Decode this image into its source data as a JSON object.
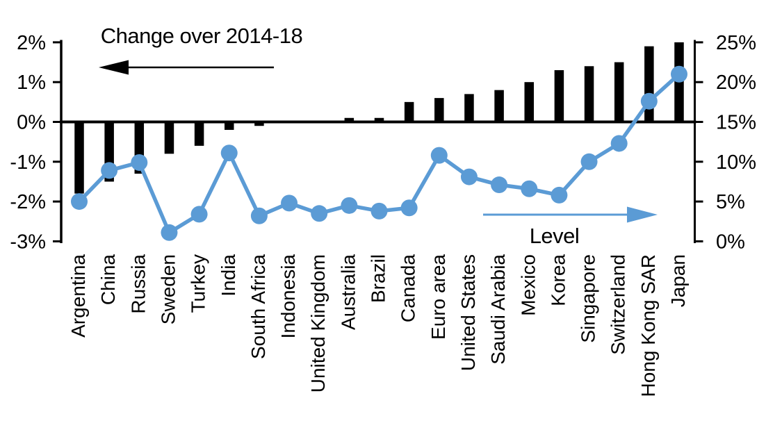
{
  "chart_data": {
    "type": "bar+line",
    "title": "",
    "categories": [
      "Argentina",
      "China",
      "Russia",
      "Sweden",
      "Turkey",
      "India",
      "South Africa",
      "Indonesia",
      "United Kingdom",
      "Australia",
      "Brazil",
      "Canada",
      "Euro area",
      "United States",
      "Saudi Arabia",
      "Mexico",
      "Korea",
      "Singapore",
      "Switzerland",
      "Hong Kong SAR",
      "Japan"
    ],
    "series": [
      {
        "name": "Change over 2014-18",
        "type": "bar",
        "axis": "left",
        "unit": "%",
        "color": "#000000",
        "values": [
          -1.8,
          -1.5,
          -1.3,
          -0.8,
          -0.6,
          -0.2,
          -0.1,
          0,
          0,
          0.1,
          0.1,
          0.5,
          0.6,
          0.7,
          0.8,
          1.0,
          1.3,
          1.4,
          1.5,
          1.9,
          2.0
        ]
      },
      {
        "name": "Level",
        "type": "line",
        "axis": "right",
        "unit": "%",
        "color": "#5B9BD5",
        "values": [
          5.0,
          8.9,
          9.9,
          1.1,
          3.4,
          11.1,
          3.2,
          4.8,
          3.5,
          4.5,
          3.8,
          4.2,
          10.8,
          8.1,
          7.1,
          6.6,
          5.8,
          10.0,
          12.3,
          17.6,
          21.0
        ]
      }
    ],
    "left_axis": {
      "min": -3,
      "max": 2,
      "tick_values": [
        2,
        1,
        0,
        -1,
        -2,
        -3
      ],
      "tick_labels": [
        "2%",
        "1%",
        "0%",
        "-1%",
        "-2%",
        "-3%"
      ]
    },
    "right_axis": {
      "min": 0,
      "max": 25,
      "tick_values": [
        25,
        20,
        15,
        10,
        5,
        0
      ],
      "tick_labels": [
        "25%",
        "20%",
        "15%",
        "10%",
        "5%",
        "0%"
      ]
    },
    "annotations": {
      "bar_label": "Change over 2014-18",
      "bar_arrow_direction": "left",
      "line_label": "Level",
      "line_arrow_direction": "right"
    },
    "grid": false,
    "legend_position": "in-plot arrow annotations"
  },
  "colors": {
    "bar": "#000000",
    "line": "#5B9BD5",
    "text": "#000000",
    "background": "#FFFFFF"
  }
}
